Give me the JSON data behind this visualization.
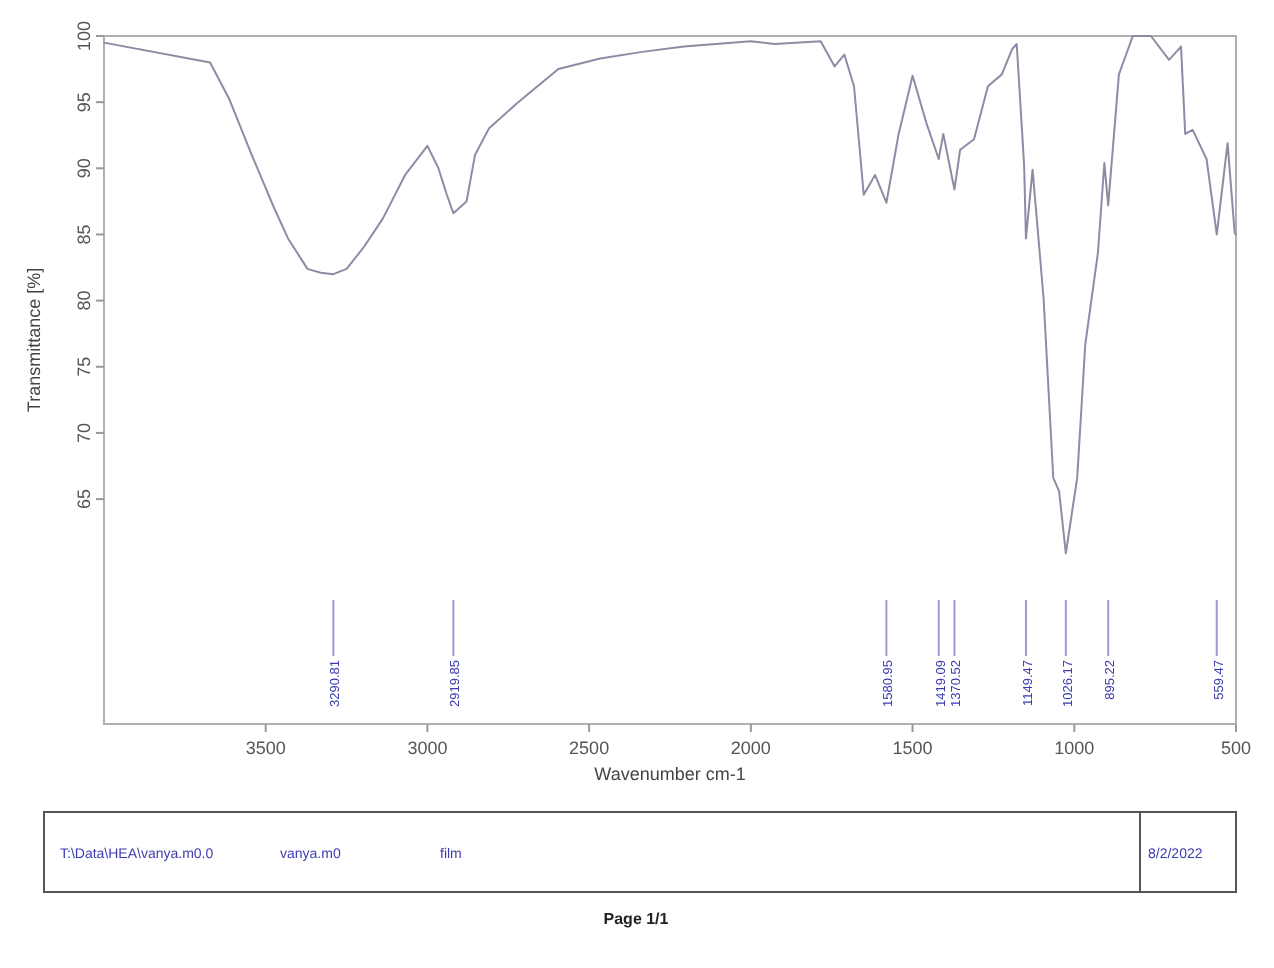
{
  "chart_data": {
    "type": "line",
    "xlabel": "Wavenumber cm-1",
    "ylabel": "Transmittance [%]",
    "xlim": [
      4000,
      500
    ],
    "xticks": [
      3500,
      3000,
      2500,
      2000,
      1500,
      1000,
      500
    ],
    "ylim": [
      48,
      100
    ],
    "yticks": [
      65,
      70,
      75,
      80,
      85,
      90,
      95,
      100
    ],
    "grid": false,
    "marker": "none",
    "line_style": "solid",
    "series": [
      {
        "color": "#8c8ca6",
        "x": [
          4000,
          3672,
          3612,
          3543,
          3474,
          3431,
          3371,
          3330,
          3290.81,
          3250,
          3198,
          3138,
          3069,
          3000,
          2966,
          2940,
          2919.85,
          2879,
          2853,
          2810,
          2724,
          2595,
          2466,
          2336,
          2207,
          2000,
          1927,
          1784,
          1741,
          1711,
          1681,
          1651,
          1616,
          1580.95,
          1543,
          1500,
          1457,
          1419.09,
          1405,
          1370.52,
          1353,
          1310,
          1267,
          1224,
          1192,
          1178,
          1155,
          1149.47,
          1129,
          1095,
          1065,
          1047,
          1026.17,
          991,
          966,
          927,
          907,
          895.22,
          862,
          819,
          763,
          707,
          670,
          657,
          634,
          591,
          559.47,
          526,
          504,
          500
        ],
        "values": [
          99.5,
          98,
          95.2,
          91,
          87,
          84.7,
          82.4,
          82.1,
          82,
          82.4,
          84,
          86.2,
          89.5,
          91.7,
          90,
          88,
          86.6,
          87.5,
          91,
          93,
          94.9,
          97.5,
          98.3,
          98.8,
          99.2,
          99.6,
          99.4,
          99.6,
          97.7,
          98.6,
          96.2,
          88,
          89.5,
          87.4,
          92.6,
          97,
          93.4,
          90.7,
          92.6,
          88.4,
          91.4,
          92.2,
          96.2,
          97.1,
          99,
          99.4,
          90.2,
          84.7,
          89.9,
          80.2,
          66.6,
          65.6,
          60.9,
          66.6,
          76.7,
          83.6,
          90.4,
          87.2,
          97.1,
          100,
          100,
          98.2,
          99.2,
          92.6,
          92.9,
          90.7,
          85,
          91.9,
          85.1,
          85
        ]
      }
    ],
    "annotations": [
      {
        "text": "3290.81",
        "x": 3290.81
      },
      {
        "text": "2919.85",
        "x": 2919.85
      },
      {
        "text": "1580.95",
        "x": 1580.95
      },
      {
        "text": "1419.09",
        "x": 1419.09
      },
      {
        "text": "1370.52",
        "x": 1370.52
      },
      {
        "text": "1149.47",
        "x": 1149.47
      },
      {
        "text": "1026.17",
        "x": 1026.17
      },
      {
        "text": "895.22",
        "x": 895.22
      },
      {
        "text": "559.47",
        "x": 559.47
      },
      "T:\\Data\\HEA\\vanya.m0.0",
      "vanya.m0",
      "film",
      "8/2/2022",
      "Page 1/1"
    ]
  }
}
